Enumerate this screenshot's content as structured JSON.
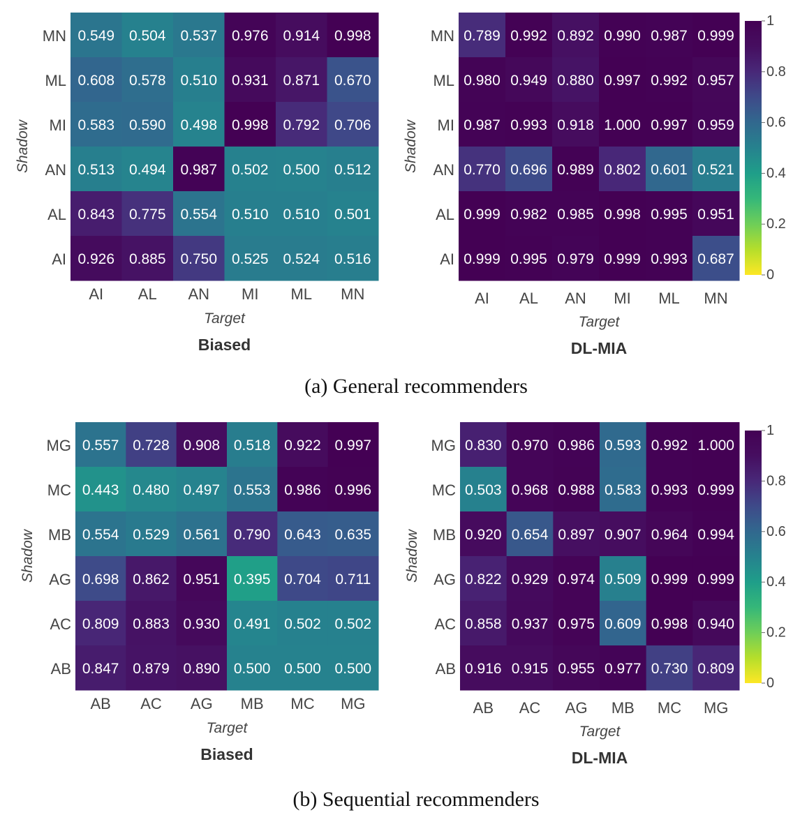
{
  "colorbar": {
    "ticks": [
      "0",
      "0.2",
      "0.4",
      "0.6",
      "0.8",
      "1"
    ],
    "min": 0,
    "max": 1
  },
  "chart_data": [
    {
      "type": "heatmap",
      "title": "Biased",
      "xlabel": "Target",
      "ylabel": "Shadow",
      "x_categories": [
        "AI",
        "AL",
        "AN",
        "MI",
        "ML",
        "MN"
      ],
      "y_categories": [
        "MN",
        "ML",
        "MI",
        "AN",
        "AL",
        "AI"
      ],
      "values": [
        [
          0.549,
          0.504,
          0.537,
          0.976,
          0.914,
          0.998
        ],
        [
          0.608,
          0.578,
          0.51,
          0.931,
          0.871,
          0.67
        ],
        [
          0.583,
          0.59,
          0.498,
          0.998,
          0.792,
          0.706
        ],
        [
          0.513,
          0.494,
          0.987,
          0.502,
          0.5,
          0.512
        ],
        [
          0.843,
          0.775,
          0.554,
          0.51,
          0.51,
          0.501
        ],
        [
          0.926,
          0.885,
          0.75,
          0.525,
          0.524,
          0.516
        ]
      ],
      "labels": [
        [
          "0.549",
          "0.504",
          "0.537",
          "0.976",
          "0.914",
          "0.998"
        ],
        [
          "0.608",
          "0.578",
          "0.510",
          "0.931",
          "0.871",
          "0.670"
        ],
        [
          "0.583",
          "0.590",
          "0.498",
          "0.998",
          "0.792",
          "0.706"
        ],
        [
          "0.513",
          "0.494",
          "0.987",
          "0.502",
          "0.500",
          "0.512"
        ],
        [
          "0.843",
          "0.775",
          "0.554",
          "0.510",
          "0.510",
          "0.501"
        ],
        [
          "0.926",
          "0.885",
          "0.750",
          "0.525",
          "0.524",
          "0.516"
        ]
      ],
      "colormap": "viridis-reversed",
      "zlim": [
        0,
        1
      ],
      "colorbar": false
    },
    {
      "type": "heatmap",
      "title": "DL-MIA",
      "xlabel": "Target",
      "ylabel": "Shadow",
      "x_categories": [
        "AI",
        "AL",
        "AN",
        "MI",
        "ML",
        "MN"
      ],
      "y_categories": [
        "MN",
        "ML",
        "MI",
        "AN",
        "AL",
        "AI"
      ],
      "values": [
        [
          0.789,
          0.992,
          0.892,
          0.99,
          0.987,
          0.999
        ],
        [
          0.98,
          0.949,
          0.88,
          0.997,
          0.992,
          0.957
        ],
        [
          0.987,
          0.993,
          0.918,
          1.0,
          0.997,
          0.959
        ],
        [
          0.77,
          0.696,
          0.989,
          0.802,
          0.601,
          0.521
        ],
        [
          0.999,
          0.982,
          0.985,
          0.998,
          0.995,
          0.951
        ],
        [
          0.999,
          0.995,
          0.979,
          0.999,
          0.993,
          0.687
        ]
      ],
      "labels": [
        [
          "0.789",
          "0.992",
          "0.892",
          "0.990",
          "0.987",
          "0.999"
        ],
        [
          "0.980",
          "0.949",
          "0.880",
          "0.997",
          "0.992",
          "0.957"
        ],
        [
          "0.987",
          "0.993",
          "0.918",
          "1.000",
          "0.997",
          "0.959"
        ],
        [
          "0.770",
          "0.696",
          "0.989",
          "0.802",
          "0.601",
          "0.521"
        ],
        [
          "0.999",
          "0.982",
          "0.985",
          "0.998",
          "0.995",
          "0.951"
        ],
        [
          "0.999",
          "0.995",
          "0.979",
          "0.999",
          "0.993",
          "0.687"
        ]
      ],
      "colormap": "viridis-reversed",
      "zlim": [
        0,
        1
      ],
      "colorbar": true
    },
    {
      "type": "heatmap",
      "title": "Biased",
      "xlabel": "Target",
      "ylabel": "Shadow",
      "x_categories": [
        "AB",
        "AC",
        "AG",
        "MB",
        "MC",
        "MG"
      ],
      "y_categories": [
        "MG",
        "MC",
        "MB",
        "AG",
        "AC",
        "AB"
      ],
      "values": [
        [
          0.557,
          0.728,
          0.908,
          0.518,
          0.922,
          0.997
        ],
        [
          0.443,
          0.48,
          0.497,
          0.553,
          0.986,
          0.996
        ],
        [
          0.554,
          0.529,
          0.561,
          0.79,
          0.643,
          0.635
        ],
        [
          0.698,
          0.862,
          0.951,
          0.395,
          0.704,
          0.711
        ],
        [
          0.809,
          0.883,
          0.93,
          0.491,
          0.502,
          0.502
        ],
        [
          0.847,
          0.879,
          0.89,
          0.5,
          0.5,
          0.5
        ]
      ],
      "labels": [
        [
          "0.557",
          "0.728",
          "0.908",
          "0.518",
          "0.922",
          "0.997"
        ],
        [
          "0.443",
          "0.480",
          "0.497",
          "0.553",
          "0.986",
          "0.996"
        ],
        [
          "0.554",
          "0.529",
          "0.561",
          "0.790",
          "0.643",
          "0.635"
        ],
        [
          "0.698",
          "0.862",
          "0.951",
          "0.395",
          "0.704",
          "0.711"
        ],
        [
          "0.809",
          "0.883",
          "0.930",
          "0.491",
          "0.502",
          "0.502"
        ],
        [
          "0.847",
          "0.879",
          "0.890",
          "0.500",
          "0.500",
          "0.500"
        ]
      ],
      "colormap": "viridis-reversed",
      "zlim": [
        0,
        1
      ],
      "colorbar": false
    },
    {
      "type": "heatmap",
      "title": "DL-MIA",
      "xlabel": "Target",
      "ylabel": "Shadow",
      "x_categories": [
        "AB",
        "AC",
        "AG",
        "MB",
        "MC",
        "MG"
      ],
      "y_categories": [
        "MG",
        "MC",
        "MB",
        "AG",
        "AC",
        "AB"
      ],
      "values": [
        [
          0.83,
          0.97,
          0.986,
          0.593,
          0.992,
          1.0
        ],
        [
          0.503,
          0.968,
          0.988,
          0.583,
          0.993,
          0.999
        ],
        [
          0.92,
          0.654,
          0.897,
          0.907,
          0.964,
          0.994
        ],
        [
          0.822,
          0.929,
          0.974,
          0.509,
          0.999,
          0.999
        ],
        [
          0.858,
          0.937,
          0.975,
          0.609,
          0.998,
          0.94
        ],
        [
          0.916,
          0.915,
          0.955,
          0.977,
          0.73,
          0.809
        ]
      ],
      "labels": [
        [
          "0.830",
          "0.970",
          "0.986",
          "0.593",
          "0.992",
          "1.000"
        ],
        [
          "0.503",
          "0.968",
          "0.988",
          "0.583",
          "0.993",
          "0.999"
        ],
        [
          "0.920",
          "0.654",
          "0.897",
          "0.907",
          "0.964",
          "0.994"
        ],
        [
          "0.822",
          "0.929",
          "0.974",
          "0.509",
          "0.999",
          "0.999"
        ],
        [
          "0.858",
          "0.937",
          "0.975",
          "0.609",
          "0.998",
          "0.940"
        ],
        [
          "0.916",
          "0.915",
          "0.955",
          "0.977",
          "0.730",
          "0.809"
        ]
      ],
      "colormap": "viridis-reversed",
      "zlim": [
        0,
        1
      ],
      "colorbar": true
    }
  ],
  "captions": {
    "a": "(a)  General recommenders",
    "b": "(b)  Sequential recommenders"
  }
}
